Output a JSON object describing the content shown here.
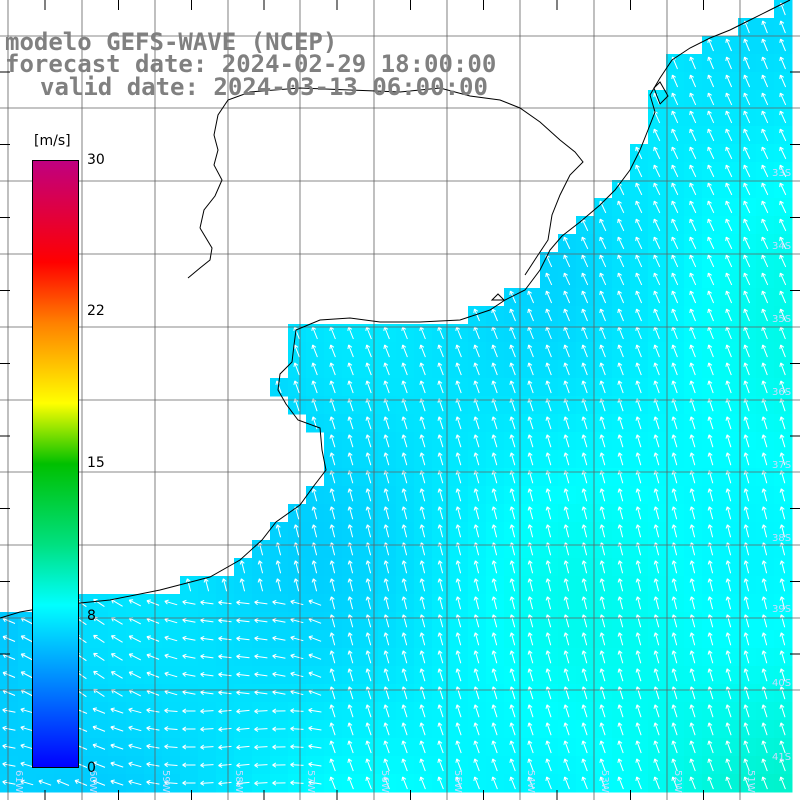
{
  "title": {
    "line1": "modelo GEFS-WAVE (NCEP)",
    "line2": "forecast date: 2024-02-29 18:00:00",
    "line3": "valid date: 2024-03-13 06:00:00"
  },
  "colorbar": {
    "unit": "[m/s]",
    "ticks": [
      "30",
      "22",
      "15",
      "8",
      "0"
    ],
    "tick_values": [
      30,
      22,
      15,
      8,
      0
    ],
    "range": [
      0,
      30
    ],
    "stops": [
      {
        "v": 0,
        "c": "#0000ff"
      },
      {
        "v": 4,
        "c": "#0080ff"
      },
      {
        "v": 8,
        "c": "#00ffff"
      },
      {
        "v": 11,
        "c": "#00e080"
      },
      {
        "v": 15,
        "c": "#00c000"
      },
      {
        "v": 18,
        "c": "#ffff00"
      },
      {
        "v": 22,
        "c": "#ff8000"
      },
      {
        "v": 25,
        "c": "#ff0000"
      },
      {
        "v": 30,
        "c": "#c00080"
      }
    ]
  },
  "map": {
    "land_color": "#ffffff",
    "coast_color": "#000000",
    "grid_color": "#606060",
    "lon_labels": [
      "61W",
      "60W",
      "59W",
      "58W",
      "57W",
      "56W",
      "55W",
      "54W",
      "53W",
      "52W",
      "51W"
    ],
    "lat_labels": [
      "33S",
      "34S",
      "35S",
      "36S",
      "37S",
      "38S",
      "39S",
      "40S",
      "41S"
    ],
    "wind_field": "mostly from the south-southeast (arrows pointing north-northwest), turning to westward near the south-western coast",
    "speed_range_ms": [
      5,
      10
    ]
  }
}
